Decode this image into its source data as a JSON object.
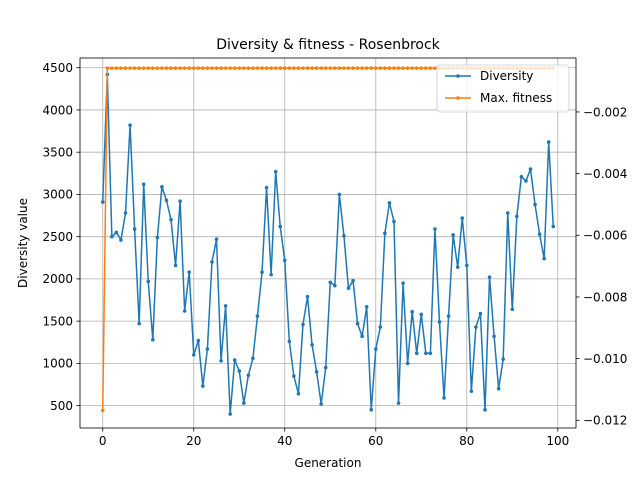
{
  "chart_data": {
    "type": "line",
    "title": "Diversity & fitness - Rosenbrock",
    "xlabel": "Generation",
    "ylabel": "Diversity value",
    "xlim": [
      -5,
      104
    ],
    "ylim": [
      235,
      4615
    ],
    "y2lim": [
      -0.01225,
      -0.00025
    ],
    "grid": true,
    "legend_position": "top-right",
    "x_ticks": [
      0,
      20,
      40,
      60,
      80,
      100
    ],
    "y_ticks": [
      500,
      1000,
      1500,
      2000,
      2500,
      3000,
      3500,
      4000,
      4500
    ],
    "y2_ticks": [
      -0.012,
      -0.01,
      -0.008,
      -0.006,
      -0.004,
      -0.002
    ],
    "series": [
      {
        "name": "Diversity",
        "axis": "left",
        "color": "#1f77b4",
        "x": [
          0,
          1,
          2,
          3,
          4,
          5,
          6,
          7,
          8,
          9,
          10,
          11,
          12,
          13,
          14,
          15,
          16,
          17,
          18,
          19,
          20,
          21,
          22,
          23,
          24,
          25,
          26,
          27,
          28,
          29,
          30,
          31,
          32,
          33,
          34,
          35,
          36,
          37,
          38,
          39,
          40,
          41,
          42,
          43,
          44,
          45,
          46,
          47,
          48,
          49,
          50,
          51,
          52,
          53,
          54,
          55,
          56,
          57,
          58,
          59,
          60,
          61,
          62,
          63,
          64,
          65,
          66,
          67,
          68,
          69,
          70,
          71,
          72,
          73,
          74,
          75,
          76,
          77,
          78,
          79,
          80,
          81,
          82,
          83,
          84,
          85,
          86,
          87,
          88,
          89,
          90,
          91,
          92,
          93,
          94,
          95,
          96,
          97,
          98,
          99
        ],
        "values": [
          2910,
          4420,
          2500,
          2550,
          2460,
          2780,
          3820,
          2590,
          1470,
          3120,
          1970,
          1280,
          2490,
          3090,
          2930,
          2700,
          2160,
          2920,
          1620,
          2080,
          1100,
          1270,
          730,
          1170,
          2200,
          2470,
          1030,
          1680,
          400,
          1040,
          910,
          530,
          860,
          1060,
          1560,
          2080,
          3080,
          2050,
          3270,
          2620,
          2220,
          1260,
          850,
          640,
          1460,
          1790,
          1220,
          900,
          520,
          950,
          1960,
          1920,
          3000,
          2510,
          1890,
          1980,
          1470,
          1320,
          1670,
          450,
          1170,
          1430,
          2540,
          2900,
          2680,
          530,
          1950,
          1000,
          1610,
          1120,
          1580,
          1120,
          1120,
          2590,
          1490,
          590,
          1560,
          2520,
          2140,
          2720,
          2160,
          670,
          1430,
          1590,
          450,
          2020,
          1320,
          700,
          1050,
          2780,
          1640,
          2740,
          3210,
          3160,
          3300,
          2880,
          2530,
          2240,
          3620,
          2620
        ]
      },
      {
        "name": "Max. fitness",
        "axis": "right",
        "color": "#ff7f0e",
        "x": [
          0,
          1,
          2,
          3,
          4,
          5,
          6,
          7,
          8,
          9,
          10,
          11,
          12,
          13,
          14,
          15,
          16,
          17,
          18,
          19,
          20,
          21,
          22,
          23,
          24,
          25,
          26,
          27,
          28,
          29,
          30,
          31,
          32,
          33,
          34,
          35,
          36,
          37,
          38,
          39,
          40,
          41,
          42,
          43,
          44,
          45,
          46,
          47,
          48,
          49,
          50,
          51,
          52,
          53,
          54,
          55,
          56,
          57,
          58,
          59,
          60,
          61,
          62,
          63,
          64,
          65,
          66,
          67,
          68,
          69,
          70,
          71,
          72,
          73,
          74,
          75,
          76,
          77,
          78,
          79,
          80,
          81,
          82,
          83,
          84,
          85,
          86,
          87,
          88,
          89,
          90,
          91,
          92,
          93,
          94,
          95,
          96,
          97,
          98,
          99
        ],
        "values": [
          -0.01168,
          -0.00058,
          -0.00058,
          -0.00058,
          -0.00058,
          -0.00058,
          -0.00058,
          -0.00058,
          -0.00058,
          -0.00058,
          -0.00058,
          -0.00058,
          -0.00058,
          -0.00058,
          -0.00058,
          -0.00058,
          -0.00058,
          -0.00058,
          -0.00058,
          -0.00058,
          -0.00058,
          -0.00058,
          -0.00058,
          -0.00058,
          -0.00058,
          -0.00058,
          -0.00058,
          -0.00058,
          -0.00058,
          -0.00058,
          -0.00058,
          -0.00058,
          -0.00058,
          -0.00058,
          -0.00058,
          -0.00058,
          -0.00058,
          -0.00058,
          -0.00058,
          -0.00058,
          -0.00058,
          -0.00058,
          -0.00058,
          -0.00058,
          -0.00058,
          -0.00058,
          -0.00058,
          -0.00058,
          -0.00058,
          -0.00058,
          -0.00058,
          -0.00058,
          -0.00058,
          -0.00058,
          -0.00058,
          -0.00058,
          -0.00058,
          -0.00058,
          -0.00058,
          -0.00058,
          -0.00058,
          -0.00058,
          -0.00058,
          -0.00058,
          -0.00058,
          -0.00058,
          -0.00058,
          -0.00058,
          -0.00058,
          -0.00058,
          -0.00058,
          -0.00058,
          -0.00058,
          -0.00058,
          -0.00058,
          -0.00058,
          -0.00058,
          -0.00058,
          -0.00058,
          -0.00058,
          -0.00058,
          -0.00058,
          -0.00058,
          -0.00058,
          -0.00058,
          -0.00058,
          -0.00058,
          -0.00058,
          -0.00058,
          -0.00058,
          -0.00058,
          -0.00058,
          -0.00058,
          -0.00058,
          -0.00058,
          -0.00058,
          -0.00058,
          -0.00058,
          -0.00058,
          -0.00058
        ]
      }
    ]
  }
}
